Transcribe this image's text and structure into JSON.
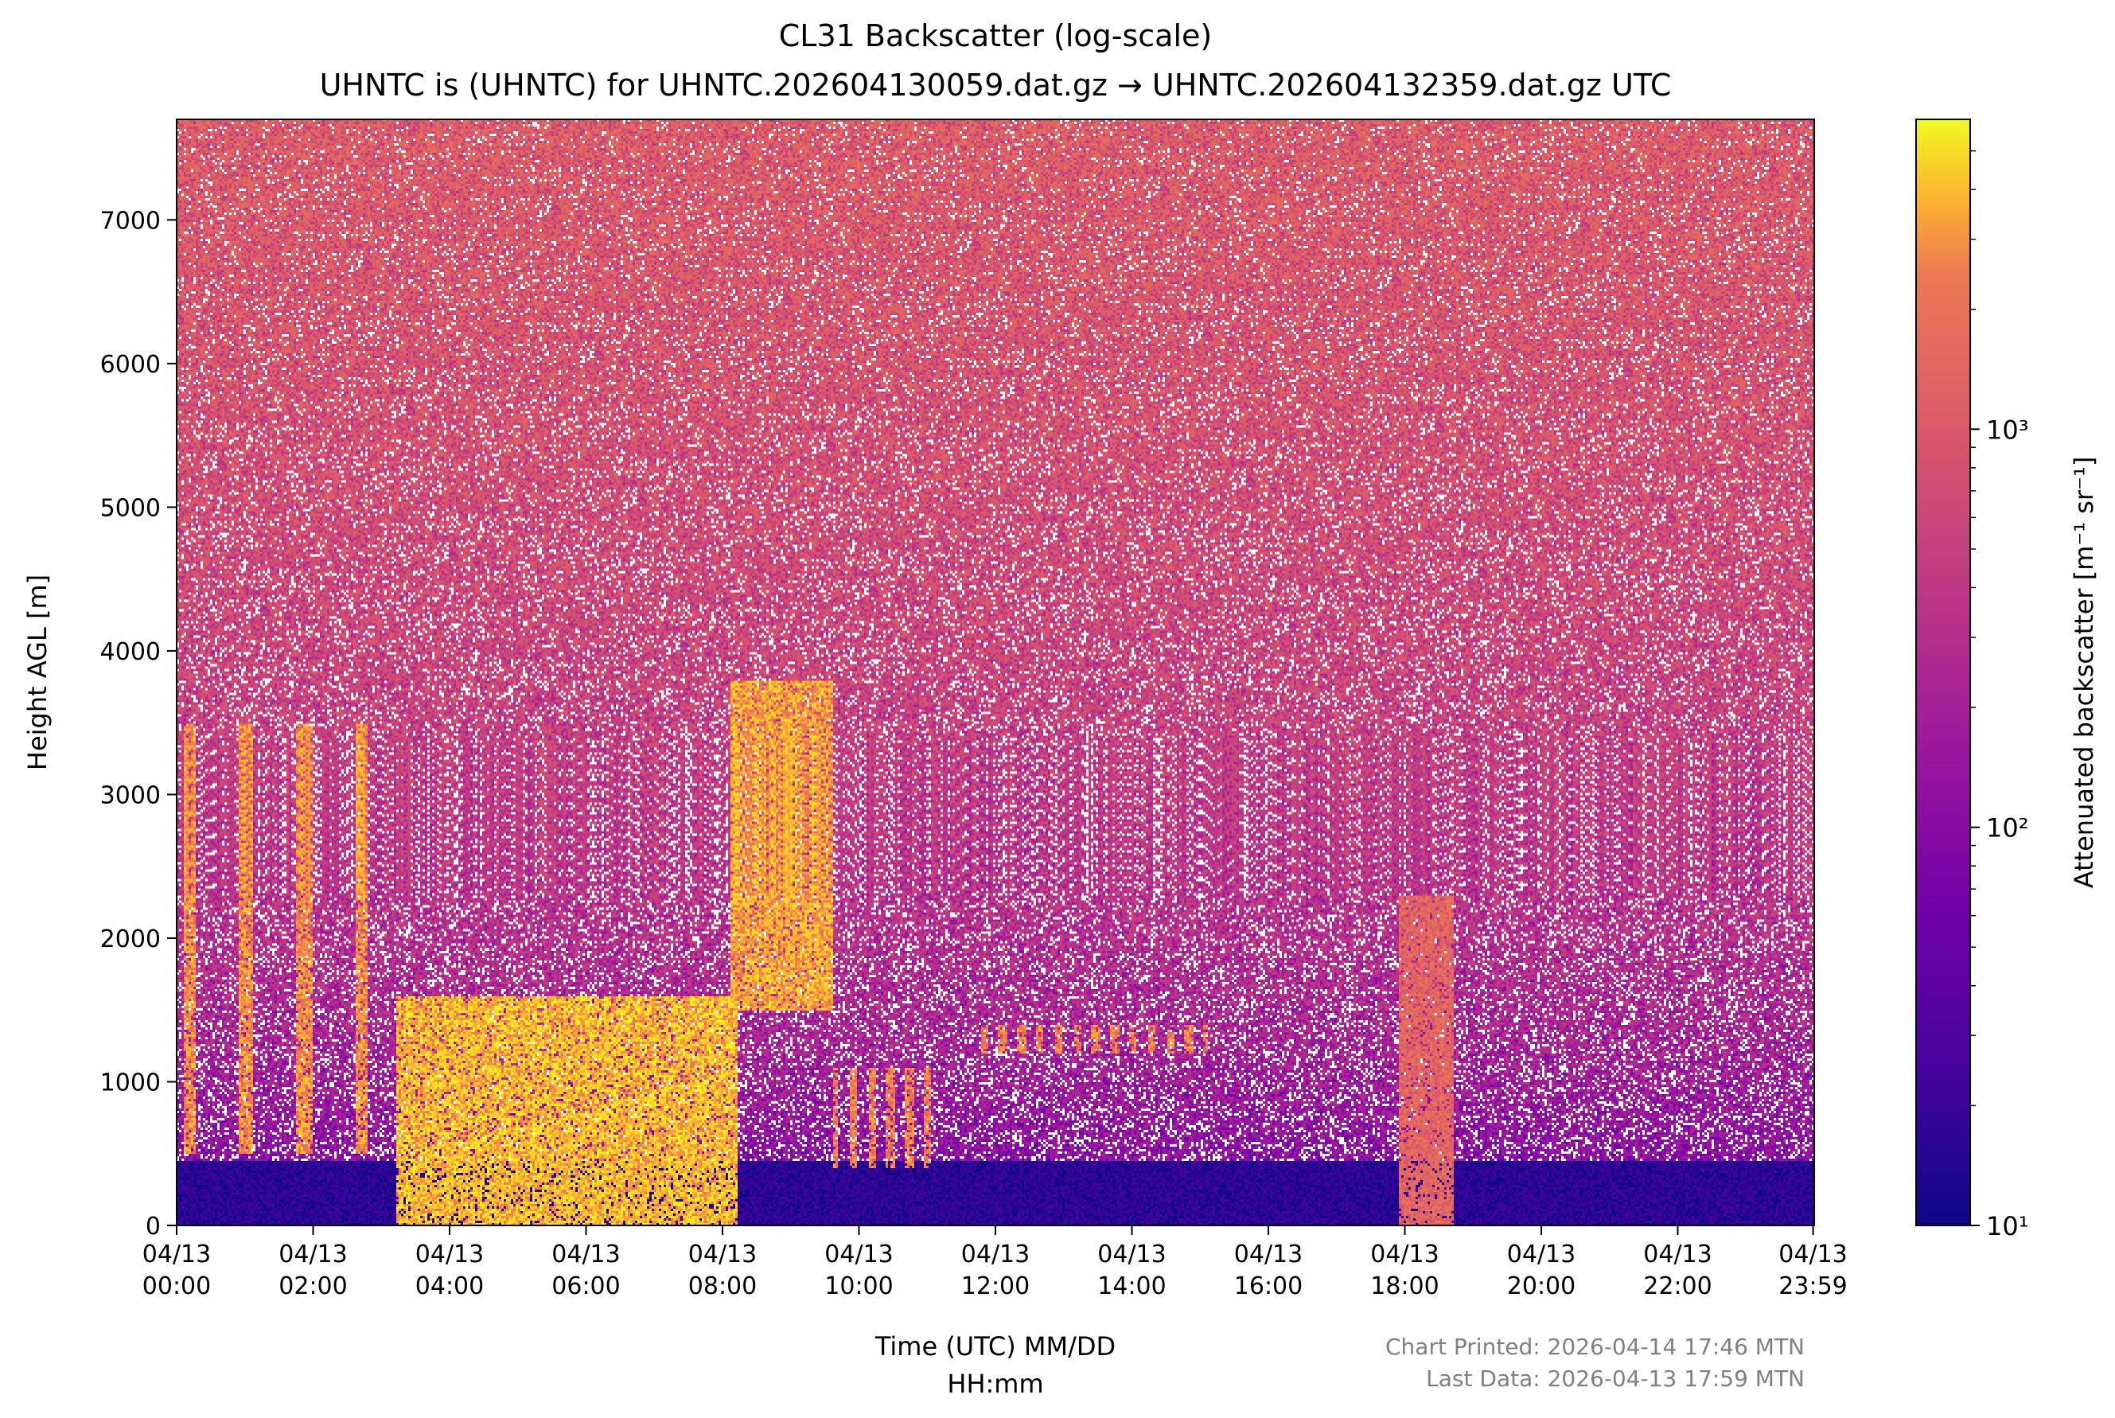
{
  "chart_data": {
    "type": "heatmap",
    "title": "CL31 Backscatter (log-scale)",
    "subtitle": "UHNTC is (UHNTC) for UHNTC.202604130059.dat.gz → UHNTC.202604132359.dat.gz UTC",
    "xlabel_line1": "Time (UTC) MM/DD",
    "xlabel_line2": "HH:mm",
    "ylabel": "Height AGL [m]",
    "xlim_hours": [
      0,
      24
    ],
    "ylim_m": [
      0,
      7700
    ],
    "x_ticks": [
      {
        "hour": 0,
        "date": "04/13",
        "time": "00:00"
      },
      {
        "hour": 2,
        "date": "04/13",
        "time": "02:00"
      },
      {
        "hour": 4,
        "date": "04/13",
        "time": "04:00"
      },
      {
        "hour": 6,
        "date": "04/13",
        "time": "06:00"
      },
      {
        "hour": 8,
        "date": "04/13",
        "time": "08:00"
      },
      {
        "hour": 10,
        "date": "04/13",
        "time": "10:00"
      },
      {
        "hour": 12,
        "date": "04/13",
        "time": "12:00"
      },
      {
        "hour": 14,
        "date": "04/13",
        "time": "14:00"
      },
      {
        "hour": 16,
        "date": "04/13",
        "time": "16:00"
      },
      {
        "hour": 18,
        "date": "04/13",
        "time": "18:00"
      },
      {
        "hour": 20,
        "date": "04/13",
        "time": "20:00"
      },
      {
        "hour": 22,
        "date": "04/13",
        "time": "22:00"
      },
      {
        "hour": 23.983,
        "date": "04/13",
        "time": "23:59"
      }
    ],
    "y_ticks": [
      0,
      1000,
      2000,
      3000,
      4000,
      5000,
      6000,
      7000
    ],
    "colorbar": {
      "label": "Attenuated backscatter [m⁻¹ sr⁻¹]",
      "scale": "log",
      "range": [
        10,
        6000
      ],
      "colormap": "plasma",
      "ticks": [
        {
          "value": 10,
          "label": "10¹"
        },
        {
          "value": 100,
          "label": "10²"
        },
        {
          "value": 1000,
          "label": "10³"
        }
      ]
    },
    "features": [
      {
        "kind": "boundary-layer",
        "start_h": 0,
        "end_h": 24,
        "top_m": 450,
        "level": 15
      },
      {
        "kind": "cloud-layer",
        "start_h": 3.2,
        "end_h": 8.2,
        "bottom_m": 0,
        "top_m": 1600,
        "level": 4000
      },
      {
        "kind": "cloud-layer",
        "start_h": 8.1,
        "end_h": 9.6,
        "bottom_m": 1500,
        "top_m": 3800,
        "level": 3500
      },
      {
        "kind": "precip-streaks",
        "start_h": 0,
        "end_h": 3.0,
        "bottom_m": 500,
        "top_m": 3500,
        "level": 3000
      },
      {
        "kind": "cloud-patches",
        "start_h": 11.7,
        "end_h": 15.1,
        "bottom_m": 1200,
        "top_m": 1400,
        "level": 2500
      },
      {
        "kind": "cloud-patches",
        "start_h": 9.6,
        "end_h": 11.2,
        "bottom_m": 400,
        "top_m": 1100,
        "level": 2500
      },
      {
        "kind": "virga",
        "start_h": 17.9,
        "end_h": 18.7,
        "bottom_m": 0,
        "top_m": 2300,
        "level": 1500
      }
    ]
  },
  "footer": {
    "printed": "Chart Printed: 2026-04-14 17:46 MTN",
    "last_data": "Last Data: 2026-04-13 17:59 MTN"
  },
  "colors": {
    "text": "#000000",
    "footer_text": "#808080"
  }
}
